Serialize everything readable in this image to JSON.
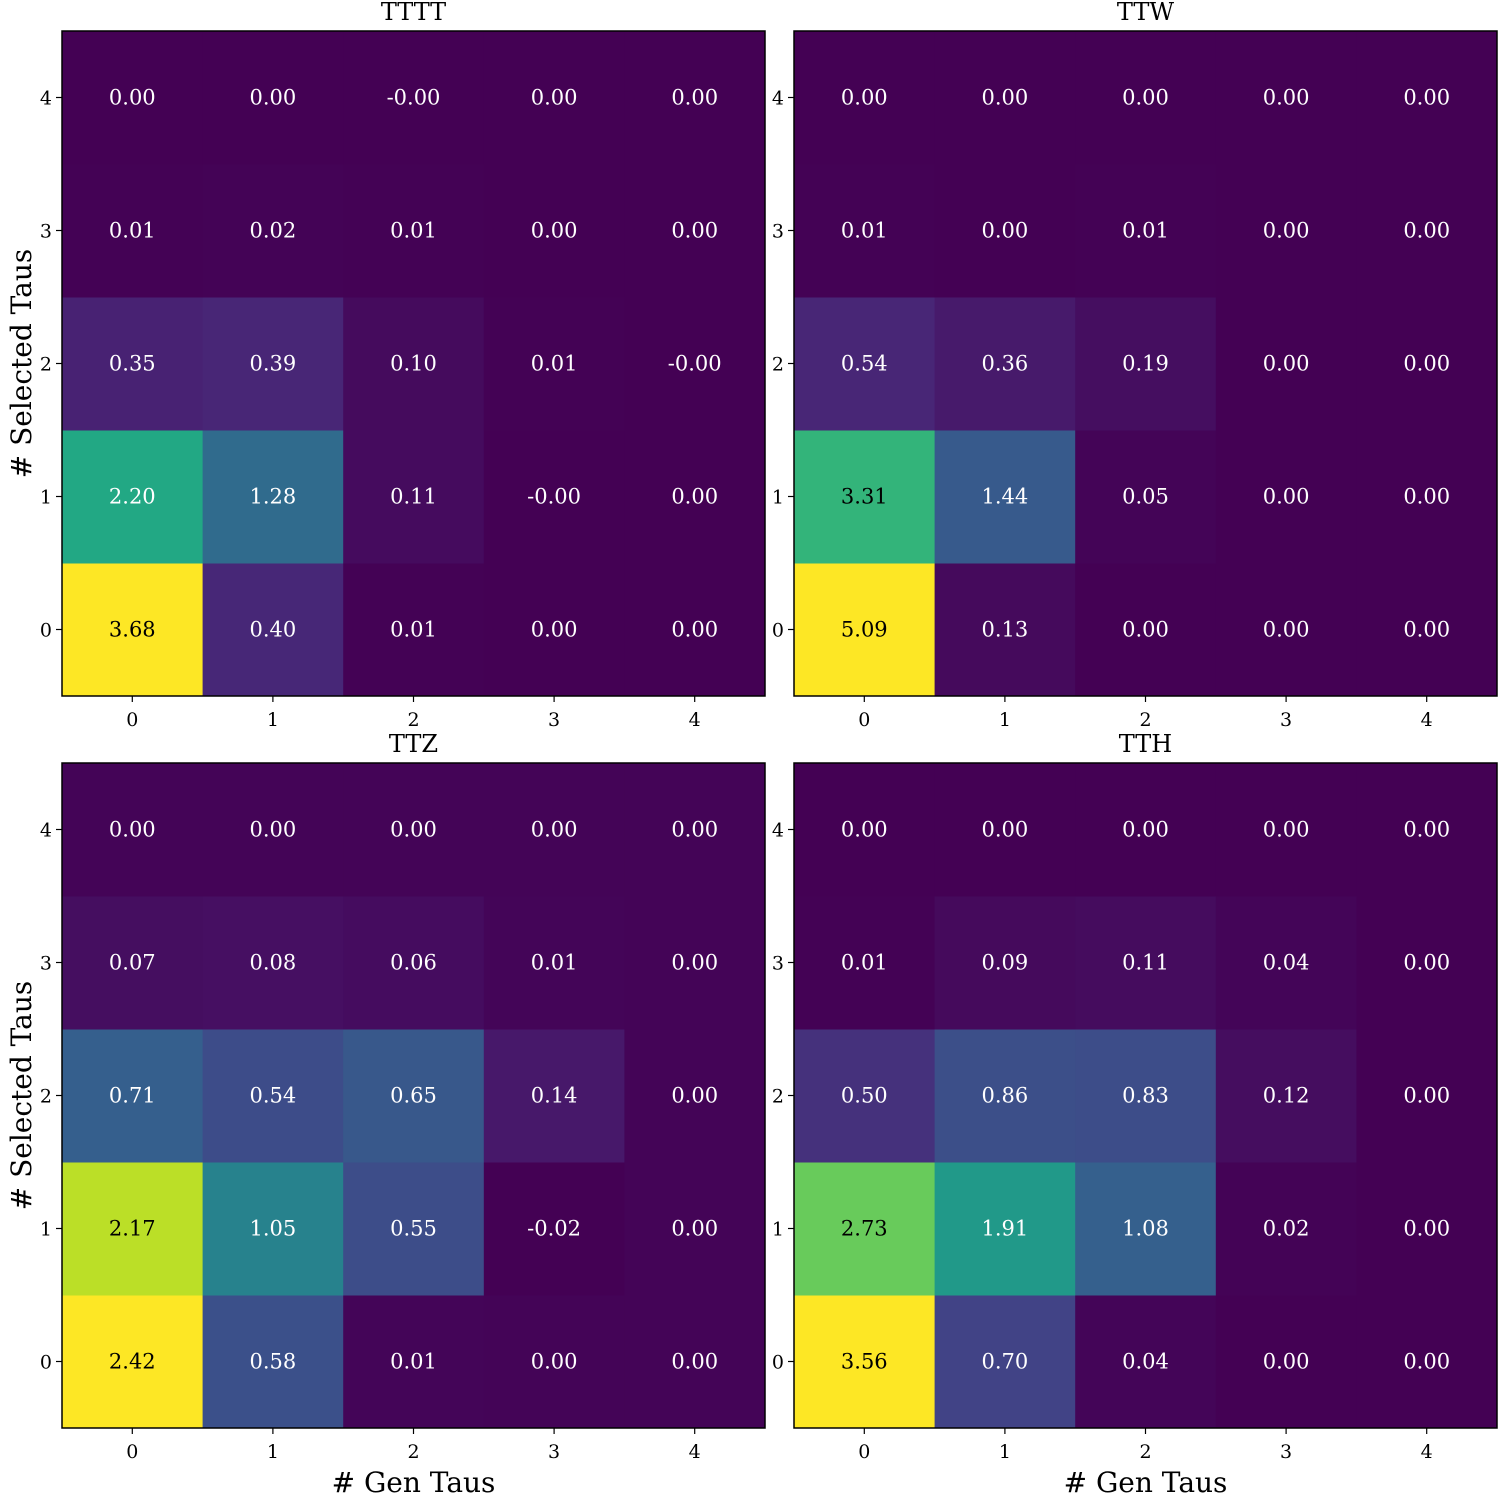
{
  "colormap": "viridis",
  "chart_data": [
    {
      "type": "heatmap",
      "title": "TTTT",
      "xlabel": "",
      "ylabel": "# Selected Taus",
      "x_ticks": [
        "0",
        "1",
        "2",
        "3",
        "4"
      ],
      "y_ticks": [
        "0",
        "1",
        "2",
        "3",
        "4"
      ],
      "color_range": [
        0,
        3.68
      ],
      "rows": [
        {
          "y": "0",
          "values": [
            3.68,
            0.4,
            0.01,
            0.0,
            0.0
          ],
          "labels": [
            "3.68",
            "0.40",
            "0.01",
            "0.00",
            "0.00"
          ]
        },
        {
          "y": "1",
          "values": [
            2.2,
            1.28,
            0.11,
            0.0,
            0.0
          ],
          "labels": [
            "2.20",
            "1.28",
            "0.11",
            "-0.00",
            "0.00"
          ]
        },
        {
          "y": "2",
          "values": [
            0.35,
            0.39,
            0.1,
            0.01,
            0.0
          ],
          "labels": [
            "0.35",
            "0.39",
            "0.10",
            "0.01",
            "-0.00"
          ]
        },
        {
          "y": "3",
          "values": [
            0.01,
            0.02,
            0.01,
            0.0,
            0.0
          ],
          "labels": [
            "0.01",
            "0.02",
            "0.01",
            "0.00",
            "0.00"
          ]
        },
        {
          "y": "4",
          "values": [
            0.0,
            0.0,
            0.0,
            0.0,
            0.0
          ],
          "labels": [
            "0.00",
            "0.00",
            "-0.00",
            "0.00",
            "0.00"
          ]
        }
      ]
    },
    {
      "type": "heatmap",
      "title": "TTW",
      "xlabel": "",
      "ylabel": "",
      "x_ticks": [
        "0",
        "1",
        "2",
        "3",
        "4"
      ],
      "y_ticks": [
        "0",
        "1",
        "2",
        "3",
        "4"
      ],
      "color_range": [
        0,
        5.09
      ],
      "rows": [
        {
          "y": "0",
          "values": [
            5.09,
            0.13,
            0.0,
            0.0,
            0.0
          ],
          "labels": [
            "5.09",
            "0.13",
            "0.00",
            "0.00",
            "0.00"
          ]
        },
        {
          "y": "1",
          "values": [
            3.31,
            1.44,
            0.05,
            0.0,
            0.0
          ],
          "labels": [
            "3.31",
            "1.44",
            "0.05",
            "0.00",
            "0.00"
          ]
        },
        {
          "y": "2",
          "values": [
            0.54,
            0.36,
            0.19,
            0.0,
            0.0
          ],
          "labels": [
            "0.54",
            "0.36",
            "0.19",
            "0.00",
            "0.00"
          ]
        },
        {
          "y": "3",
          "values": [
            0.01,
            0.0,
            0.01,
            0.0,
            0.0
          ],
          "labels": [
            "0.01",
            "0.00",
            "0.01",
            "0.00",
            "0.00"
          ]
        },
        {
          "y": "4",
          "values": [
            0.0,
            0.0,
            0.0,
            0.0,
            0.0
          ],
          "labels": [
            "0.00",
            "0.00",
            "0.00",
            "0.00",
            "0.00"
          ]
        }
      ]
    },
    {
      "type": "heatmap",
      "title": "TTZ",
      "xlabel": "# Gen Taus",
      "ylabel": "# Selected Taus",
      "x_ticks": [
        "0",
        "1",
        "2",
        "3",
        "4"
      ],
      "y_ticks": [
        "0",
        "1",
        "2",
        "3",
        "4"
      ],
      "color_range": [
        -0.02,
        2.42
      ],
      "rows": [
        {
          "y": "0",
          "values": [
            2.42,
            0.58,
            0.01,
            0.0,
            0.0
          ],
          "labels": [
            "2.42",
            "0.58",
            "0.01",
            "0.00",
            "0.00"
          ]
        },
        {
          "y": "1",
          "values": [
            2.17,
            1.05,
            0.55,
            -0.02,
            0.0
          ],
          "labels": [
            "2.17",
            "1.05",
            "0.55",
            "-0.02",
            "0.00"
          ]
        },
        {
          "y": "2",
          "values": [
            0.71,
            0.54,
            0.65,
            0.14,
            0.0
          ],
          "labels": [
            "0.71",
            "0.54",
            "0.65",
            "0.14",
            "0.00"
          ]
        },
        {
          "y": "3",
          "values": [
            0.07,
            0.08,
            0.06,
            0.01,
            0.0
          ],
          "labels": [
            "0.07",
            "0.08",
            "0.06",
            "0.01",
            "0.00"
          ]
        },
        {
          "y": "4",
          "values": [
            0.0,
            0.0,
            0.0,
            0.0,
            0.0
          ],
          "labels": [
            "0.00",
            "0.00",
            "0.00",
            "0.00",
            "0.00"
          ]
        }
      ]
    },
    {
      "type": "heatmap",
      "title": "TTH",
      "xlabel": "# Gen Taus",
      "ylabel": "",
      "x_ticks": [
        "0",
        "1",
        "2",
        "3",
        "4"
      ],
      "y_ticks": [
        "0",
        "1",
        "2",
        "3",
        "4"
      ],
      "color_range": [
        0,
        3.56
      ],
      "rows": [
        {
          "y": "0",
          "values": [
            3.56,
            0.7,
            0.04,
            0.0,
            0.0
          ],
          "labels": [
            "3.56",
            "0.70",
            "0.04",
            "0.00",
            "0.00"
          ]
        },
        {
          "y": "1",
          "values": [
            2.73,
            1.91,
            1.08,
            0.02,
            0.0
          ],
          "labels": [
            "2.73",
            "1.91",
            "1.08",
            "0.02",
            "0.00"
          ]
        },
        {
          "y": "2",
          "values": [
            0.5,
            0.86,
            0.83,
            0.12,
            0.0
          ],
          "labels": [
            "0.50",
            "0.86",
            "0.83",
            "0.12",
            "0.00"
          ]
        },
        {
          "y": "3",
          "values": [
            0.01,
            0.09,
            0.11,
            0.04,
            0.0
          ],
          "labels": [
            "0.01",
            "0.09",
            "0.11",
            "0.04",
            "0.00"
          ]
        },
        {
          "y": "4",
          "values": [
            0.0,
            0.0,
            0.0,
            0.0,
            0.0
          ],
          "labels": [
            "0.00",
            "0.00",
            "0.00",
            "0.00",
            "0.00"
          ]
        }
      ]
    }
  ]
}
